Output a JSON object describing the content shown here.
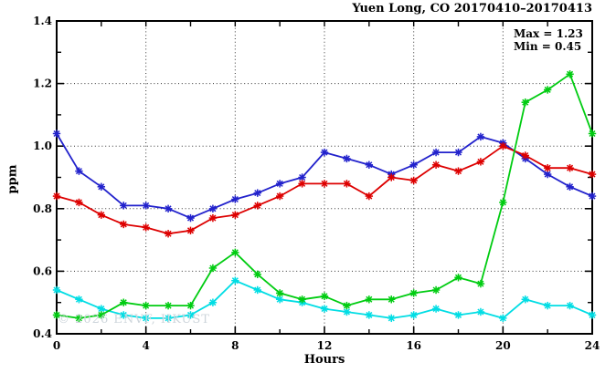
{
  "header": {
    "title": "Yuen Long, CO 20170410–20170413"
  },
  "annotations": {
    "max_label": "Max = 1.23",
    "min_label": "Min = 0.45"
  },
  "watermark": "© 2026 ENVF, HKUST",
  "chart_data": {
    "type": "line",
    "title": "Yuen Long, CO 20170410–20170413",
    "xlabel": "Hours",
    "ylabel": "ppm",
    "xlim": [
      0,
      24
    ],
    "ylim": [
      0.4,
      1.4
    ],
    "x_major_ticks": [
      0,
      4,
      8,
      12,
      16,
      20,
      24
    ],
    "x_minor_ticks": [
      2,
      6,
      10,
      14,
      18,
      22
    ],
    "y_major_ticks": [
      0.4,
      0.6,
      0.8,
      1.0,
      1.2,
      1.4
    ],
    "y_minor_ticks": [
      0.5,
      0.7,
      0.9,
      1.1,
      1.3
    ],
    "x_gridlines": [
      4,
      8,
      12,
      16,
      20
    ],
    "y_gridlines": [
      0.6,
      0.8,
      1.0,
      1.2
    ],
    "grid": "dotted",
    "legend": "none",
    "marker": "asterisk",
    "x": [
      0,
      1,
      2,
      3,
      4,
      5,
      6,
      7,
      8,
      9,
      10,
      11,
      12,
      13,
      14,
      15,
      16,
      17,
      18,
      19,
      20,
      21,
      22,
      23,
      24
    ],
    "series": [
      {
        "name": "blue",
        "color": "#2222cc",
        "values": [
          1.04,
          0.92,
          0.87,
          0.81,
          0.81,
          0.8,
          0.77,
          0.8,
          0.83,
          0.85,
          0.88,
          0.9,
          0.98,
          0.96,
          0.94,
          0.91,
          0.94,
          0.98,
          0.98,
          1.03,
          1.01,
          0.96,
          0.91,
          0.87,
          0.84
        ]
      },
      {
        "name": "red",
        "color": "#dd0000",
        "values": [
          0.84,
          0.82,
          0.78,
          0.75,
          0.74,
          0.72,
          0.73,
          0.77,
          0.78,
          0.81,
          0.84,
          0.88,
          0.88,
          0.88,
          0.84,
          0.9,
          0.89,
          0.94,
          0.92,
          0.95,
          1.0,
          0.97,
          0.93,
          0.93,
          0.91
        ]
      },
      {
        "name": "cyan",
        "color": "#00dde4",
        "values": [
          0.54,
          0.51,
          0.48,
          0.46,
          0.45,
          0.45,
          0.46,
          0.5,
          0.57,
          0.54,
          0.51,
          0.5,
          0.48,
          0.47,
          0.46,
          0.45,
          0.46,
          0.48,
          0.46,
          0.47,
          0.45,
          0.51,
          0.49,
          0.49,
          0.46
        ]
      },
      {
        "name": "green",
        "color": "#00cc11",
        "values": [
          0.46,
          0.45,
          0.46,
          0.5,
          0.49,
          0.49,
          0.49,
          0.61,
          0.66,
          0.59,
          0.53,
          0.51,
          0.52,
          0.49,
          0.51,
          0.51,
          0.53,
          0.54,
          0.58,
          0.56,
          0.82,
          1.14,
          1.18,
          1.23,
          1.04
        ]
      }
    ],
    "stats": {
      "max": 1.23,
      "min": 0.45
    }
  }
}
